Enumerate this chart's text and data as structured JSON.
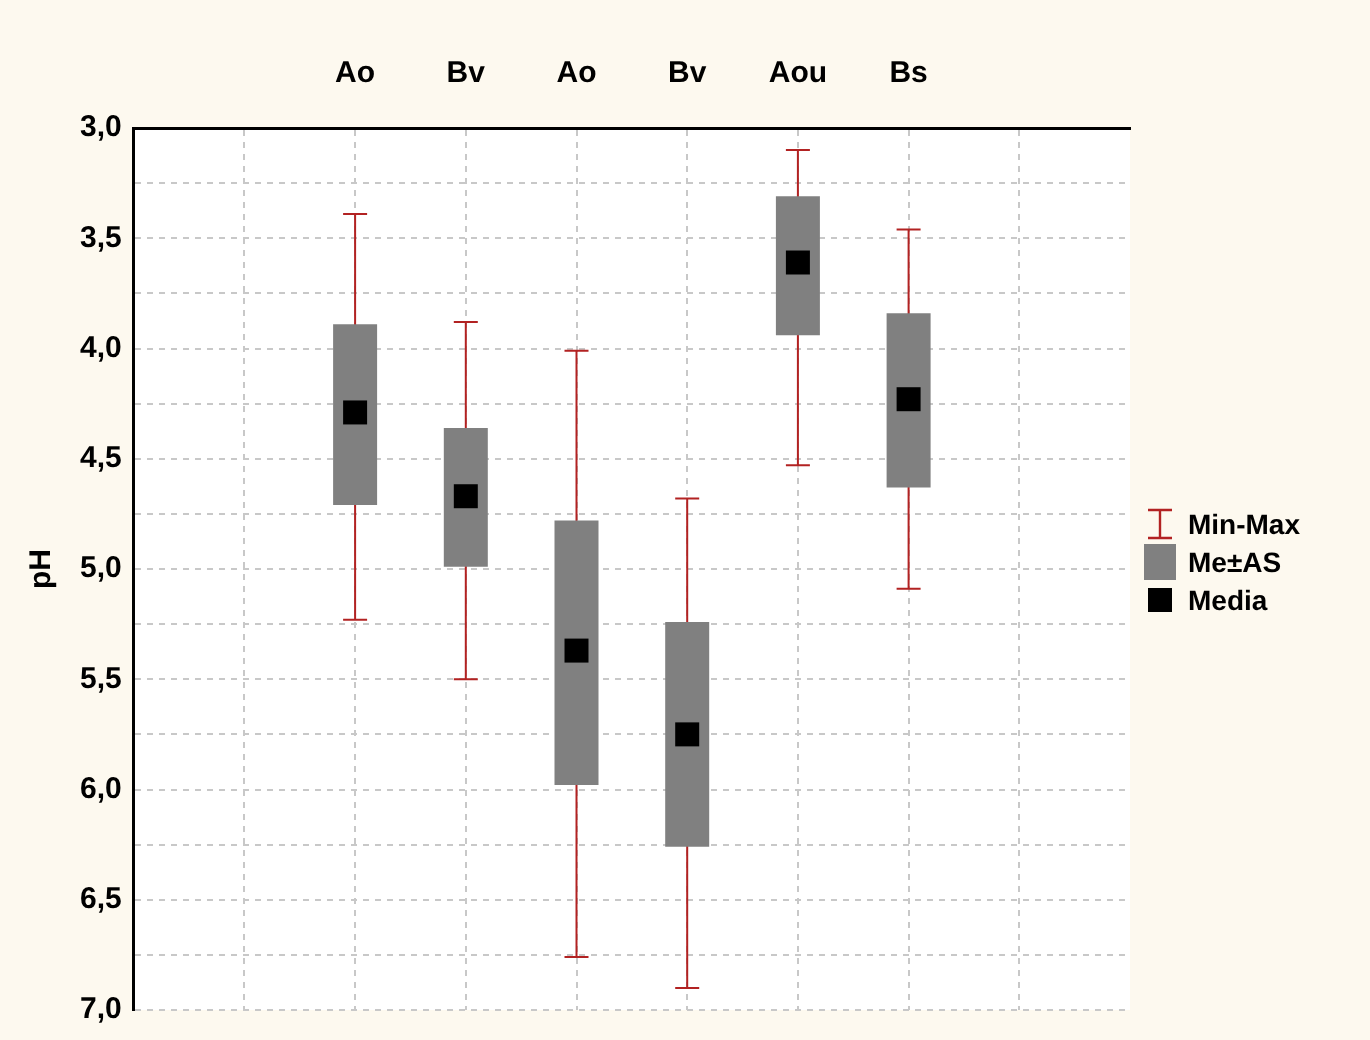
{
  "chart_data": {
    "type": "box",
    "ylabel": "pH",
    "categories": [
      null,
      "Ao",
      "Bv",
      "Ao",
      "Bv",
      "Aou",
      "Bs",
      null
    ],
    "series": [
      {
        "color": "#808080",
        "boxes": [
          null,
          {
            "low": 5.23,
            "q1": 4.71,
            "median": 4.29,
            "q3": 3.89,
            "high": 3.39
          },
          {
            "low": 5.5,
            "q1": 4.99,
            "median": 4.67,
            "q3": 4.36,
            "high": 3.88
          },
          {
            "low": 6.76,
            "q1": 5.98,
            "median": 5.37,
            "q3": 4.78,
            "high": 4.01
          },
          {
            "low": 6.9,
            "q1": 6.26,
            "median": 5.75,
            "q3": 5.24,
            "high": 4.68
          },
          {
            "low": 4.53,
            "q1": 3.94,
            "median": 3.61,
            "q3": 3.31,
            "high": 3.1
          },
          {
            "low": 5.09,
            "q1": 4.63,
            "median": 4.23,
            "q3": 3.84,
            "high": 3.46
          },
          null
        ]
      }
    ],
    "annotations": [
      "Min-Max",
      "Me±AS",
      "Media"
    ],
    "ylim": [
      7,
      3
    ],
    "yticks": [
      {
        "value": 3,
        "label": "3,0"
      },
      {
        "value": 3.25,
        "label": null
      },
      {
        "value": 3.5,
        "label": "3,5"
      },
      {
        "value": 3.75,
        "label": null
      },
      {
        "value": 4,
        "label": "4,0"
      },
      {
        "value": 4.25,
        "label": null
      },
      {
        "value": 4.5,
        "label": "4,5"
      },
      {
        "value": 4.75,
        "label": null
      },
      {
        "value": 5,
        "label": "5,0"
      },
      {
        "value": 5.25,
        "label": null
      },
      {
        "value": 5.5,
        "label": "5,5"
      },
      {
        "value": 5.75,
        "label": null
      },
      {
        "value": 6,
        "label": "6,0"
      },
      {
        "value": 6.25,
        "label": null
      },
      {
        "value": 6.5,
        "label": "6,5"
      },
      {
        "value": 6.75,
        "label": null
      },
      {
        "value": 7,
        "label": "7,0"
      }
    ],
    "grid": true
  }
}
